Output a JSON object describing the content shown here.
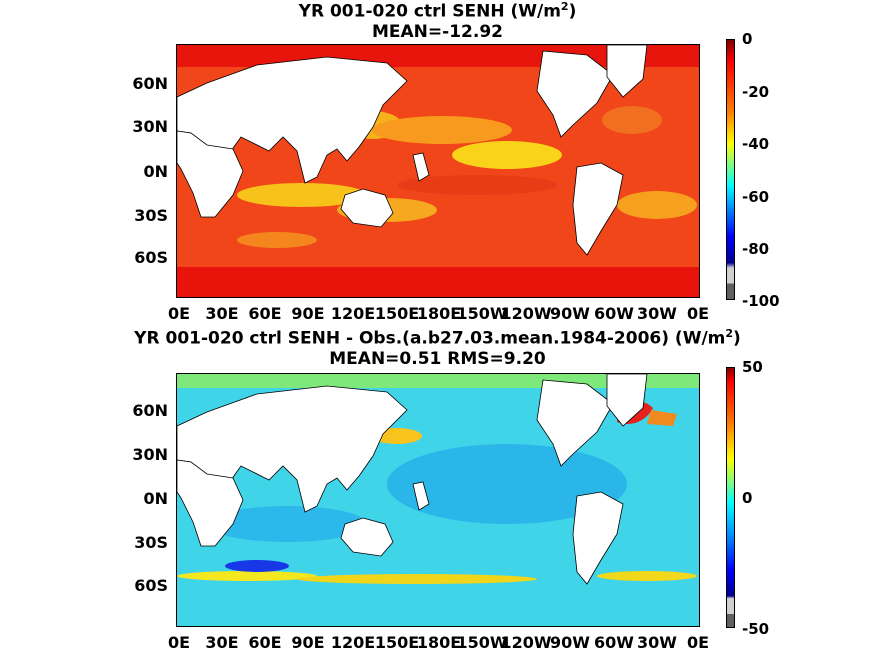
{
  "panels": [
    {
      "title_line1": "YR 001-020 ctrl  SENH (W/m",
      "title_sup": "2",
      "title_close": ")",
      "title_line2": "MEAN=-12.92",
      "colorbar_ticks": [
        "0",
        "-20",
        "-40",
        "-60",
        "-80",
        "-100"
      ],
      "colorscale": "jet",
      "ocean_color": "#f5601e"
    },
    {
      "title_line1": "YR 001-020 ctrl SENH - Obs.(a.b27.03.mean.1984-2006) (W/m",
      "title_sup": "2",
      "title_close": ")",
      "title_line2": "MEAN=0.51 RMS=9.20",
      "colorbar_ticks": [
        "50",
        "0",
        "-50"
      ],
      "colorscale": "jet",
      "ocean_color": "#3ad8e6"
    }
  ],
  "lat_labels": [
    "60N",
    "30N",
    "0N",
    "30S",
    "60S"
  ],
  "lon_labels": [
    "0E",
    "30E",
    "60E",
    "90E",
    "120E",
    "150E",
    "180E",
    "150W",
    "120W",
    "90W",
    "60W",
    "30W",
    "0E"
  ]
}
